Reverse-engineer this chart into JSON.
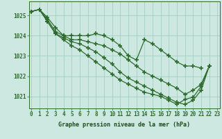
{
  "x": [
    0,
    1,
    2,
    3,
    4,
    5,
    6,
    7,
    8,
    9,
    10,
    11,
    12,
    13,
    14,
    15,
    16,
    17,
    18,
    19,
    20,
    21,
    22,
    23
  ],
  "series": [
    [
      1025.2,
      1025.3,
      1024.9,
      1024.4,
      1024.0,
      1024.0,
      1024.0,
      1024.0,
      1024.1,
      1024.0,
      1023.8,
      1023.5,
      1023.0,
      1022.8,
      1023.8,
      1023.6,
      1023.3,
      1023.0,
      1022.7,
      1022.5,
      1022.5,
      1022.4,
      null,
      null
    ],
    [
      1025.2,
      1025.3,
      1024.8,
      1024.2,
      1024.0,
      1023.8,
      1023.8,
      1023.7,
      1023.6,
      1023.5,
      1023.3,
      1023.1,
      1022.8,
      1022.5,
      1022.2,
      1022.0,
      1021.8,
      1021.6,
      1021.4,
      1021.1,
      1021.3,
      1021.6,
      1022.5,
      null
    ],
    [
      1025.2,
      1025.3,
      1024.7,
      1024.1,
      1023.9,
      1023.7,
      1023.6,
      1023.4,
      1023.2,
      1022.9,
      1022.6,
      1022.2,
      1021.9,
      1021.7,
      1021.5,
      1021.3,
      1021.1,
      1020.9,
      1020.7,
      1020.6,
      1020.8,
      1021.3,
      1022.5,
      null
    ],
    [
      1025.2,
      1025.3,
      1024.7,
      1024.1,
      1023.8,
      1023.5,
      1023.3,
      1023.0,
      1022.7,
      1022.4,
      1022.1,
      1021.8,
      1021.6,
      1021.4,
      1021.2,
      1021.1,
      1021.0,
      1020.8,
      1020.6,
      1020.85,
      1020.95,
      1021.5,
      1022.5,
      null
    ]
  ],
  "line_color": "#2d6a2d",
  "marker": "+",
  "markersize": 4,
  "markeredgewidth": 1.2,
  "linewidth": 0.9,
  "background_color": "#cce8e0",
  "grid_color": "#99ccbb",
  "ylabel_values": [
    1021,
    1022,
    1023,
    1024,
    1025
  ],
  "xlabel_values": [
    0,
    1,
    2,
    3,
    4,
    5,
    6,
    7,
    8,
    9,
    10,
    11,
    12,
    13,
    14,
    15,
    16,
    17,
    18,
    19,
    20,
    21,
    22,
    23
  ],
  "xlabel_label": "Graphe pression niveau de la mer (hPa)",
  "ylim": [
    1020.4,
    1025.7
  ],
  "xlim": [
    -0.3,
    23.3
  ],
  "title_color": "#1a4a1a",
  "axis_color": "#2d6a2d",
  "tick_fontsize": 5.5,
  "xlabel_fontsize": 6.0
}
